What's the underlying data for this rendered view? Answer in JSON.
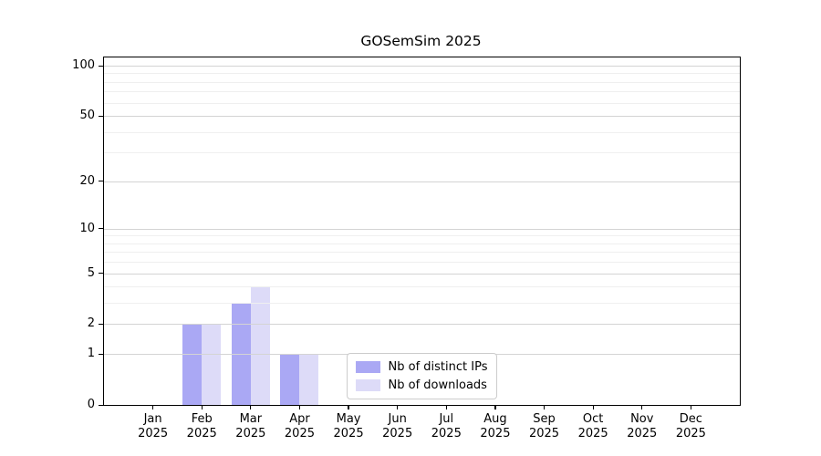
{
  "chart_data": {
    "type": "bar",
    "title": "GOSemSim 2025",
    "categories": [
      "Jan",
      "Feb",
      "Mar",
      "Apr",
      "May",
      "Jun",
      "Jul",
      "Aug",
      "Sep",
      "Oct",
      "Nov",
      "Dec"
    ],
    "x_year": "2025",
    "series": [
      {
        "name": "Nb of distinct IPs",
        "color": "#aaa8f4",
        "values": [
          0,
          2,
          3,
          1,
          0,
          0,
          0,
          0,
          0,
          0,
          0,
          0
        ]
      },
      {
        "name": "Nb of downloads",
        "color": "#dddbf8",
        "values": [
          0,
          2,
          4,
          1,
          0,
          0,
          0,
          0,
          0,
          0,
          0,
          0
        ]
      }
    ],
    "xlabel": "",
    "ylabel": "",
    "yscale": "log1p",
    "ylim": [
      0,
      112
    ],
    "yticks": [
      0,
      1,
      2,
      5,
      10,
      20,
      50,
      100
    ],
    "yticks_minor": [
      3,
      4,
      6,
      7,
      8,
      9,
      30,
      40,
      60,
      70,
      80,
      90
    ],
    "grid": "horizontal",
    "legend_position": "lower center"
  },
  "style": {
    "background": "#ffffff",
    "axis_color": "#000000",
    "text_color": "#000000",
    "major_grid_color": "#d4d4d4",
    "minor_grid_color": "#efefef",
    "legend_border_color": "#cccccc"
  }
}
